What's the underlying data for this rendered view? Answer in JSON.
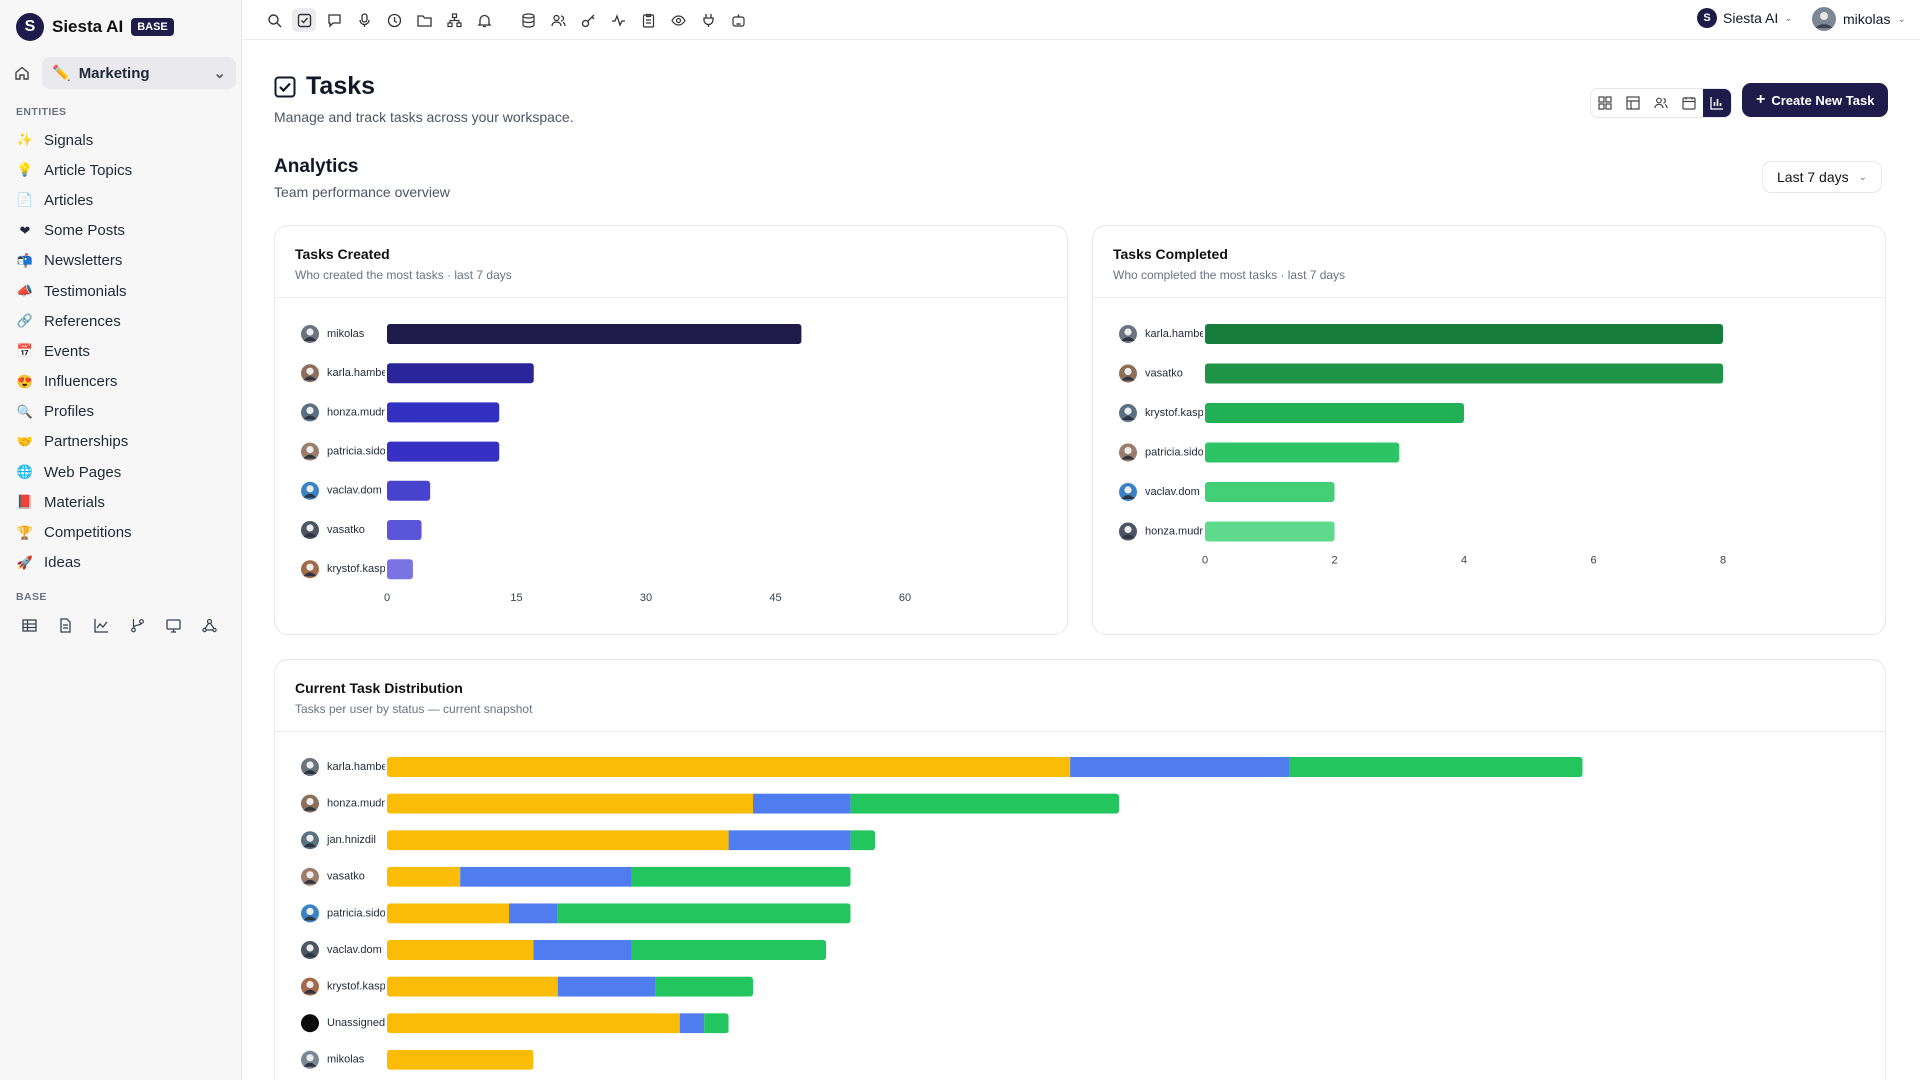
{
  "app": {
    "name": "Siesta AI",
    "plan_badge": "BASE"
  },
  "workspace": {
    "selected": "Marketing"
  },
  "sidebar": {
    "entities_label": "ENTITIES",
    "items": [
      {
        "label": "Signals",
        "emoji": "✨"
      },
      {
        "label": "Article Topics",
        "emoji": "💡"
      },
      {
        "label": "Articles",
        "emoji": "📄"
      },
      {
        "label": "Some Posts",
        "emoji": "❤"
      },
      {
        "label": "Newsletters",
        "emoji": "📬"
      },
      {
        "label": "Testimonials",
        "emoji": "📣"
      },
      {
        "label": "References",
        "emoji": "🔗"
      },
      {
        "label": "Events",
        "emoji": "📅"
      },
      {
        "label": "Influencers",
        "emoji": "😍"
      },
      {
        "label": "Profiles",
        "emoji": "🔍"
      },
      {
        "label": "Partnerships",
        "emoji": "🤝"
      },
      {
        "label": "Web Pages",
        "emoji": "🌐"
      },
      {
        "label": "Materials",
        "emoji": "📕"
      },
      {
        "label": "Competitions",
        "emoji": "🏆"
      },
      {
        "label": "Ideas",
        "emoji": "🚀"
      }
    ],
    "base_label": "BASE"
  },
  "topbar": {
    "org": "Siesta AI",
    "user": "mikolas"
  },
  "page": {
    "title": "Tasks",
    "subtitle": "Manage and track tasks across your workspace.",
    "create_button": "Create New Task"
  },
  "analytics": {
    "title": "Analytics",
    "subtitle": "Team performance overview",
    "range": "Last 7 days"
  },
  "colors": {
    "navy": "#1e1b4b",
    "todo": "#fbbc05",
    "in_progress": "#4f7df0",
    "done": "#22c55e"
  },
  "chart_data": [
    {
      "type": "bar",
      "orientation": "horizontal",
      "title": "Tasks Created",
      "subtitle": "Who created the most tasks · last 7 days",
      "categories": [
        "mikolas",
        "karla.hambe",
        "honza.mudr",
        "patricia.sido",
        "vaclav.dom",
        "vasatko",
        "krystof.kasp"
      ],
      "values": [
        48,
        17,
        13,
        13,
        5,
        4,
        3
      ],
      "xlim": [
        0,
        60
      ],
      "xticks": [
        0,
        15,
        30,
        45,
        60
      ],
      "colors": [
        "#1e1b4b",
        "#2a2699",
        "#3130c0",
        "#3631c4",
        "#4843cf",
        "#5b55d7",
        "#7a74e2"
      ]
    },
    {
      "type": "bar",
      "orientation": "horizontal",
      "title": "Tasks Completed",
      "subtitle": "Who completed the most tasks · last 7 days",
      "categories": [
        "karla.hambe",
        "vasatko",
        "krystof.kasp",
        "patricia.sido",
        "vaclav.dom",
        "honza.mudr"
      ],
      "values": [
        8,
        8,
        4,
        3,
        2,
        2
      ],
      "xlim": [
        0,
        8
      ],
      "xticks": [
        0,
        2,
        4,
        6,
        8
      ],
      "colors": [
        "#177d3c",
        "#1f9447",
        "#22b056",
        "#2cc464",
        "#43cf75",
        "#5fd98b"
      ]
    },
    {
      "type": "bar",
      "orientation": "horizontal",
      "stacked": true,
      "title": "Current Task Distribution",
      "subtitle": "Tasks per user by status — current snapshot",
      "categories": [
        "karla.hambe",
        "honza.mudr",
        "jan.hnizdil",
        "vasatko",
        "patricia.sido",
        "vaclav.dom",
        "krystof.kasp",
        "Unassigned",
        "mikolas"
      ],
      "series": [
        {
          "values": [
            28,
            15,
            14,
            3,
            5,
            6,
            7,
            12,
            6
          ]
        },
        {
          "values": [
            9,
            4,
            5,
            7,
            2,
            4,
            4,
            1,
            0
          ]
        },
        {
          "values": [
            12,
            11,
            1,
            9,
            12,
            8,
            4,
            1,
            0
          ]
        }
      ]
    }
  ]
}
